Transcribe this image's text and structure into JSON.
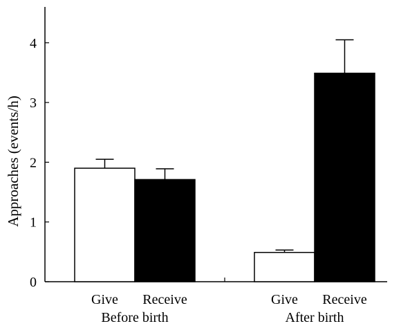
{
  "chart_data": {
    "type": "bar",
    "ylabel": "Approaches (events/h)",
    "ylim": [
      0,
      4.6
    ],
    "yticks": [
      0,
      1,
      2,
      3,
      4
    ],
    "groups": [
      {
        "label": "Before birth",
        "bars": [
          {
            "label": "Give",
            "value": 1.9,
            "error": 0.15,
            "fill": "white"
          },
          {
            "label": "Receive",
            "value": 1.71,
            "error": 0.18,
            "fill": "black"
          }
        ]
      },
      {
        "label": "After birth",
        "bars": [
          {
            "label": "Give",
            "value": 0.49,
            "error": 0.04,
            "fill": "white"
          },
          {
            "label": "Receive",
            "value": 3.49,
            "error": 0.56,
            "fill": "black"
          }
        ]
      }
    ],
    "grid": false,
    "legend": "none",
    "colors": {
      "white_bar": "#ffffff",
      "black_bar": "#000000",
      "outline": "#000000"
    }
  }
}
